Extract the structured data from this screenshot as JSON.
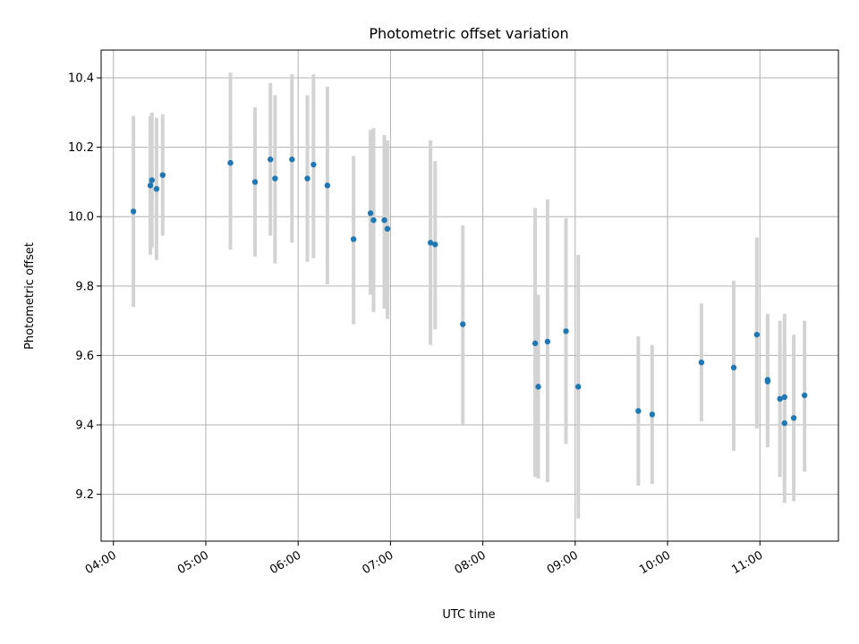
{
  "chart_data": {
    "type": "scatter",
    "title": "Photometric offset variation",
    "xlabel": "UTC time",
    "ylabel": "Photometric offset",
    "x_is_time": true,
    "xlim": [
      "03:52",
      "11:51"
    ],
    "ylim": [
      9.065,
      10.48
    ],
    "x_ticks": [
      "04:00",
      "05:00",
      "06:00",
      "07:00",
      "08:00",
      "09:00",
      "10:00",
      "11:00"
    ],
    "y_ticks": [
      9.2,
      9.4,
      9.6,
      9.8,
      10.0,
      10.2,
      10.4
    ],
    "y_tick_labels": [
      "9.2",
      "9.4",
      "9.6",
      "9.8",
      "10.0",
      "10.2",
      "10.4"
    ],
    "grid": true,
    "colors": {
      "marker": "#1f77b4",
      "errorbar": "#d3d3d3"
    },
    "series": [
      {
        "points": [
          {
            "x": "04:13",
            "y": 10.015,
            "lo": 9.74,
            "hi": 10.29
          },
          {
            "x": "04:24",
            "y": 10.09,
            "lo": 9.89,
            "hi": 10.29
          },
          {
            "x": "04:25",
            "y": 10.105,
            "lo": 9.91,
            "hi": 10.3
          },
          {
            "x": "04:28",
            "y": 10.08,
            "lo": 9.875,
            "hi": 10.285
          },
          {
            "x": "04:32",
            "y": 10.12,
            "lo": 9.945,
            "hi": 10.295
          },
          {
            "x": "05:16",
            "y": 10.155,
            "lo": 9.905,
            "hi": 10.415
          },
          {
            "x": "05:32",
            "y": 10.1,
            "lo": 9.885,
            "hi": 10.315
          },
          {
            "x": "05:42",
            "y": 10.165,
            "lo": 9.945,
            "hi": 10.385
          },
          {
            "x": "05:45",
            "y": 10.11,
            "lo": 9.865,
            "hi": 10.35
          },
          {
            "x": "05:56",
            "y": 10.165,
            "lo": 9.925,
            "hi": 10.41
          },
          {
            "x": "06:06",
            "y": 10.11,
            "lo": 9.87,
            "hi": 10.35
          },
          {
            "x": "06:10",
            "y": 10.15,
            "lo": 9.88,
            "hi": 10.41
          },
          {
            "x": "06:19",
            "y": 10.09,
            "lo": 9.805,
            "hi": 10.375
          },
          {
            "x": "06:36",
            "y": 9.935,
            "lo": 9.69,
            "hi": 10.175
          },
          {
            "x": "06:47",
            "y": 10.01,
            "lo": 9.775,
            "hi": 10.25
          },
          {
            "x": "06:49",
            "y": 9.99,
            "lo": 9.725,
            "hi": 10.255
          },
          {
            "x": "06:56",
            "y": 9.99,
            "lo": 9.735,
            "hi": 10.235
          },
          {
            "x": "06:58",
            "y": 9.965,
            "lo": 9.705,
            "hi": 10.22
          },
          {
            "x": "07:26",
            "y": 9.925,
            "lo": 9.63,
            "hi": 10.22
          },
          {
            "x": "07:29",
            "y": 9.92,
            "lo": 9.675,
            "hi": 10.16
          },
          {
            "x": "07:47",
            "y": 9.69,
            "lo": 9.4,
            "hi": 9.975
          },
          {
            "x": "08:34",
            "y": 9.635,
            "lo": 9.25,
            "hi": 10.025
          },
          {
            "x": "08:36",
            "y": 9.51,
            "lo": 9.245,
            "hi": 9.775
          },
          {
            "x": "08:42",
            "y": 9.64,
            "lo": 9.235,
            "hi": 10.05
          },
          {
            "x": "08:54",
            "y": 9.67,
            "lo": 9.345,
            "hi": 9.995
          },
          {
            "x": "09:02",
            "y": 9.51,
            "lo": 9.13,
            "hi": 9.89
          },
          {
            "x": "09:41",
            "y": 9.44,
            "lo": 9.225,
            "hi": 9.655
          },
          {
            "x": "09:50",
            "y": 9.43,
            "lo": 9.23,
            "hi": 9.63
          },
          {
            "x": "10:22",
            "y": 9.58,
            "lo": 9.41,
            "hi": 9.75
          },
          {
            "x": "10:43",
            "y": 9.565,
            "lo": 9.325,
            "hi": 9.815
          },
          {
            "x": "10:58",
            "y": 9.66,
            "lo": 9.39,
            "hi": 9.94
          },
          {
            "x": "11:05",
            "y": 9.53,
            "lo": 9.335,
            "hi": 9.72
          },
          {
            "x": "11:05",
            "y": 9.525,
            "lo": 9.35,
            "hi": 9.705
          },
          {
            "x": "11:13",
            "y": 9.475,
            "lo": 9.25,
            "hi": 9.7
          },
          {
            "x": "11:16",
            "y": 9.48,
            "lo": 9.24,
            "hi": 9.72
          },
          {
            "x": "11:16",
            "y": 9.405,
            "lo": 9.175,
            "hi": 9.635
          },
          {
            "x": "11:22",
            "y": 9.42,
            "lo": 9.18,
            "hi": 9.66
          },
          {
            "x": "11:29",
            "y": 9.485,
            "lo": 9.265,
            "hi": 9.7
          }
        ]
      }
    ]
  }
}
